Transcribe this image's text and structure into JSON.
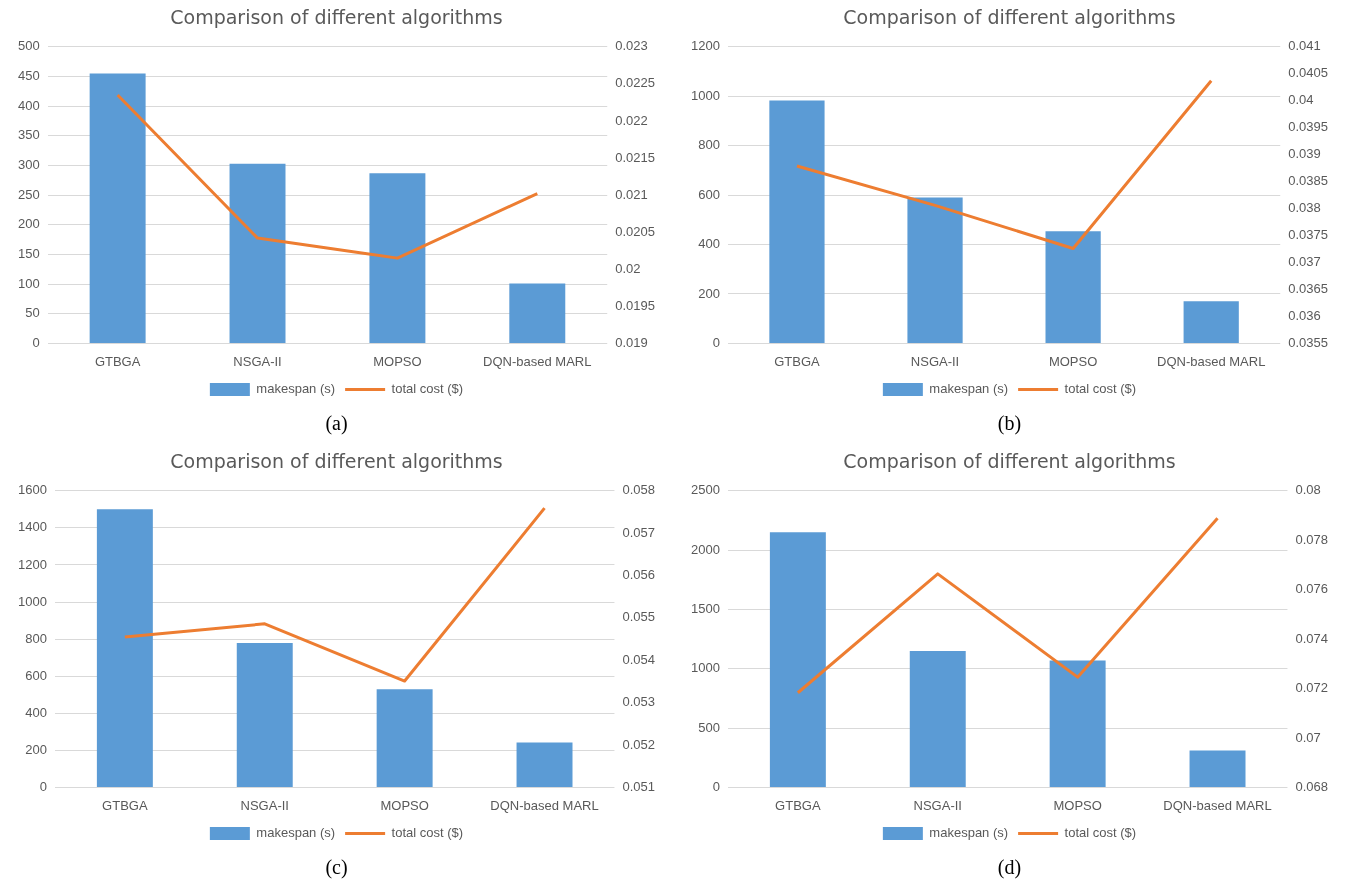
{
  "chart_data": [
    {
      "type": "bar",
      "title": "Comparison of different algorithms",
      "categories": [
        "GTBGA",
        "NSGA-II",
        "MOPSO",
        "DQN-based MARL"
      ],
      "series": [
        {
          "name": "makespan (s)",
          "color": "#5b9bd5",
          "values": [
            455,
            303,
            287,
            101
          ]
        },
        {
          "name": "total cost ($)",
          "type": "line",
          "axis": "y2",
          "color": "#ed7d31",
          "values": [
            0.02235,
            0.02042,
            0.02015,
            0.02102
          ]
        }
      ],
      "ylim": [
        0,
        500
      ],
      "yticks": [
        0,
        50,
        100,
        150,
        200,
        250,
        300,
        350,
        400,
        450,
        500
      ],
      "y2lim": [
        0.019,
        0.023
      ],
      "y2ticks": [
        0.019,
        0.0195,
        0.02,
        0.0205,
        0.021,
        0.0215,
        0.022,
        0.0225,
        0.023
      ],
      "grid": "y",
      "legend": "bottom",
      "marker": "none",
      "line_style": "solid",
      "annotations": [
        "(a)"
      ]
    },
    {
      "type": "bar",
      "title": "Comparison of different algorithms",
      "categories": [
        "GTBGA",
        "NSGA-II",
        "MOPSO",
        "DQN-based MARL"
      ],
      "series": [
        {
          "name": "makespan (s)",
          "color": "#5b9bd5",
          "values": [
            983,
            590,
            454,
            171
          ]
        },
        {
          "name": "total cost ($)",
          "type": "line",
          "axis": "y2",
          "color": "#ed7d31",
          "values": [
            0.03879,
            0.03806,
            0.03726,
            0.04037
          ]
        }
      ],
      "ylim": [
        0,
        1200
      ],
      "yticks": [
        0,
        200,
        400,
        600,
        800,
        1000,
        1200
      ],
      "y2lim": [
        0.0355,
        0.041
      ],
      "y2ticks": [
        0.0355,
        0.036,
        0.0365,
        0.037,
        0.0375,
        0.038,
        0.0385,
        0.039,
        0.0395,
        0.04,
        0.0405,
        0.041
      ],
      "grid": "y",
      "legend": "bottom",
      "marker": "none",
      "line_style": "solid",
      "annotations": [
        "(b)"
      ]
    },
    {
      "type": "bar",
      "title": "Comparison of different algorithms",
      "categories": [
        "GTBGA",
        "NSGA-II",
        "MOPSO",
        "DQN-based MARL"
      ],
      "series": [
        {
          "name": "makespan (s)",
          "color": "#5b9bd5",
          "values": [
            1501,
            779,
            530,
            242
          ]
        },
        {
          "name": "total cost ($)",
          "type": "line",
          "axis": "y2",
          "color": "#ed7d31",
          "values": [
            0.05455,
            0.05486,
            0.05351,
            0.05759
          ]
        }
      ],
      "ylim": [
        0,
        1600
      ],
      "yticks": [
        0,
        200,
        400,
        600,
        800,
        1000,
        1200,
        1400,
        1600
      ],
      "y2lim": [
        0.051,
        0.058
      ],
      "y2ticks": [
        0.051,
        0.052,
        0.053,
        0.054,
        0.055,
        0.056,
        0.057,
        0.058
      ],
      "grid": "y",
      "legend": "bottom",
      "marker": "none",
      "line_style": "solid",
      "annotations": [
        "(c)"
      ]
    },
    {
      "type": "bar",
      "title": "Comparison of different algorithms",
      "categories": [
        "GTBGA",
        "NSGA-II",
        "MOPSO",
        "DQN-based MARL"
      ],
      "series": [
        {
          "name": "makespan (s)",
          "color": "#5b9bd5",
          "values": [
            2150,
            1150,
            1070,
            310
          ]
        },
        {
          "name": "total cost ($)",
          "type": "line",
          "axis": "y2",
          "color": "#ed7d31",
          "values": [
            0.07183,
            0.07664,
            0.07246,
            0.07889
          ]
        }
      ],
      "ylim": [
        0,
        2500
      ],
      "yticks": [
        0,
        500,
        1000,
        1500,
        2000,
        2500
      ],
      "y2lim": [
        0.068,
        0.08
      ],
      "y2ticks": [
        0.068,
        0.07,
        0.072,
        0.074,
        0.076,
        0.078,
        0.08
      ],
      "grid": "y",
      "legend": "bottom",
      "marker": "none",
      "line_style": "solid",
      "annotations": [
        "(d)"
      ]
    }
  ]
}
